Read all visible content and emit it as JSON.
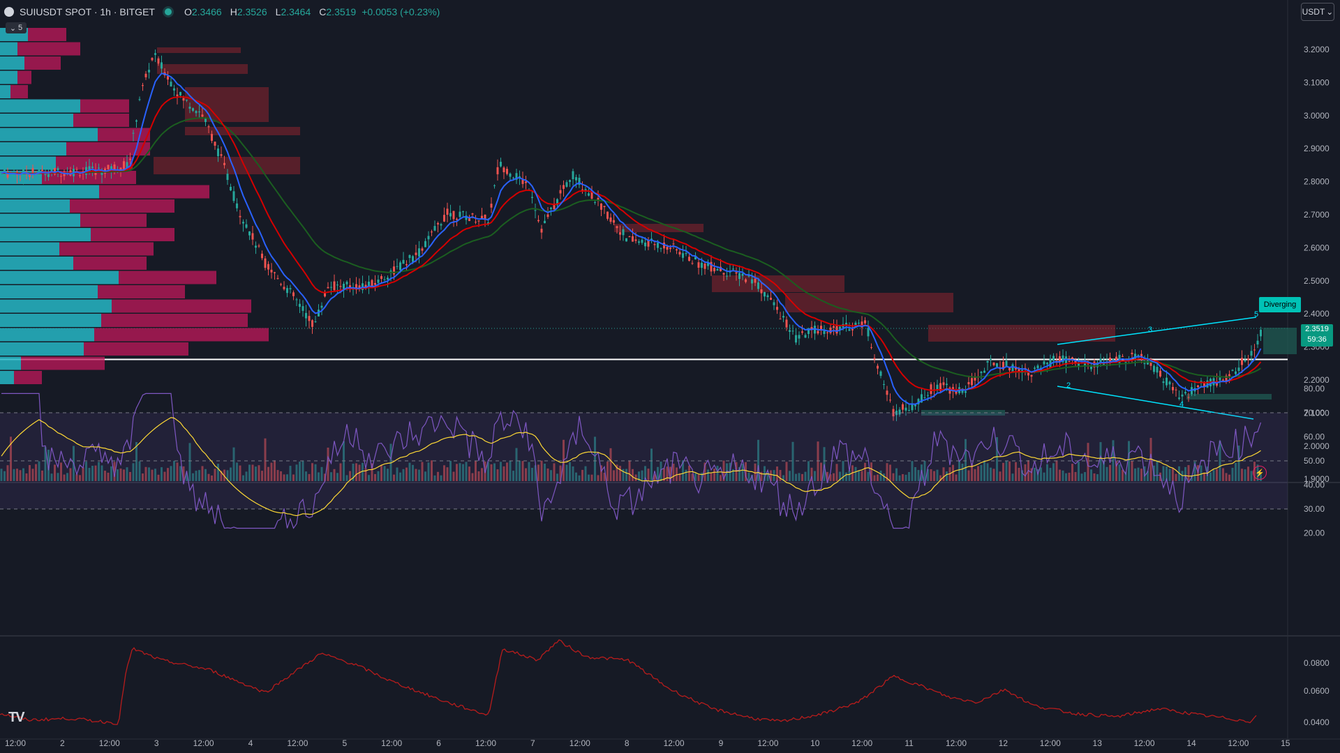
{
  "header": {
    "symbol": "SUIUSDT SPOT · 1h · BITGET",
    "open_label": "O",
    "open": "2.3466",
    "high_label": "H",
    "high": "2.3526",
    "low_label": "L",
    "low": "2.3464",
    "close_label": "C",
    "close": "2.3519",
    "change": "+0.0053 (+0.23%)"
  },
  "collapse": {
    "count": "5"
  },
  "currency": {
    "label": "USDT"
  },
  "last_price": {
    "value": "2.3519",
    "countdown": "59:36"
  },
  "annotation": {
    "label": "Diverging"
  },
  "colors": {
    "bg": "#161a25",
    "up": "#26a69a",
    "down": "#ef5350",
    "ema_fast": "#2962ff",
    "ema_mid": "#d50000",
    "ema_slow": "#1b5e20",
    "rsi": "#7e57c2",
    "rsi_ma": "#fdd835",
    "vp_up": "#26b7c6",
    "vp_down": "#c2185b"
  },
  "price_axis": [
    "3.2000",
    "3.1000",
    "3.0000",
    "2.9000",
    "2.8000",
    "2.7000",
    "2.6000",
    "2.5000",
    "2.4000",
    "2.3000",
    "2.2000",
    "2.1000",
    "2.0000",
    "1.9000"
  ],
  "rsi_axis": [
    "80.00",
    "70.00",
    "60.00",
    "50.00",
    "40.00",
    "30.00",
    "20.00"
  ],
  "osc_axis": [
    "0.0800",
    "0.0600",
    "0.0400"
  ],
  "time_axis": [
    "12:00",
    "2",
    "12:00",
    "3",
    "12:00",
    "4",
    "12:00",
    "5",
    "12:00",
    "6",
    "12:00",
    "7",
    "12:00",
    "8",
    "12:00",
    "9",
    "12:00",
    "10",
    "12:00",
    "11",
    "12:00",
    "12",
    "12:00",
    "13",
    "12:00",
    "14",
    "12:00",
    "15"
  ],
  "wave_labels": [
    "2",
    "3",
    "4",
    "5"
  ],
  "logo_text": "TV"
}
